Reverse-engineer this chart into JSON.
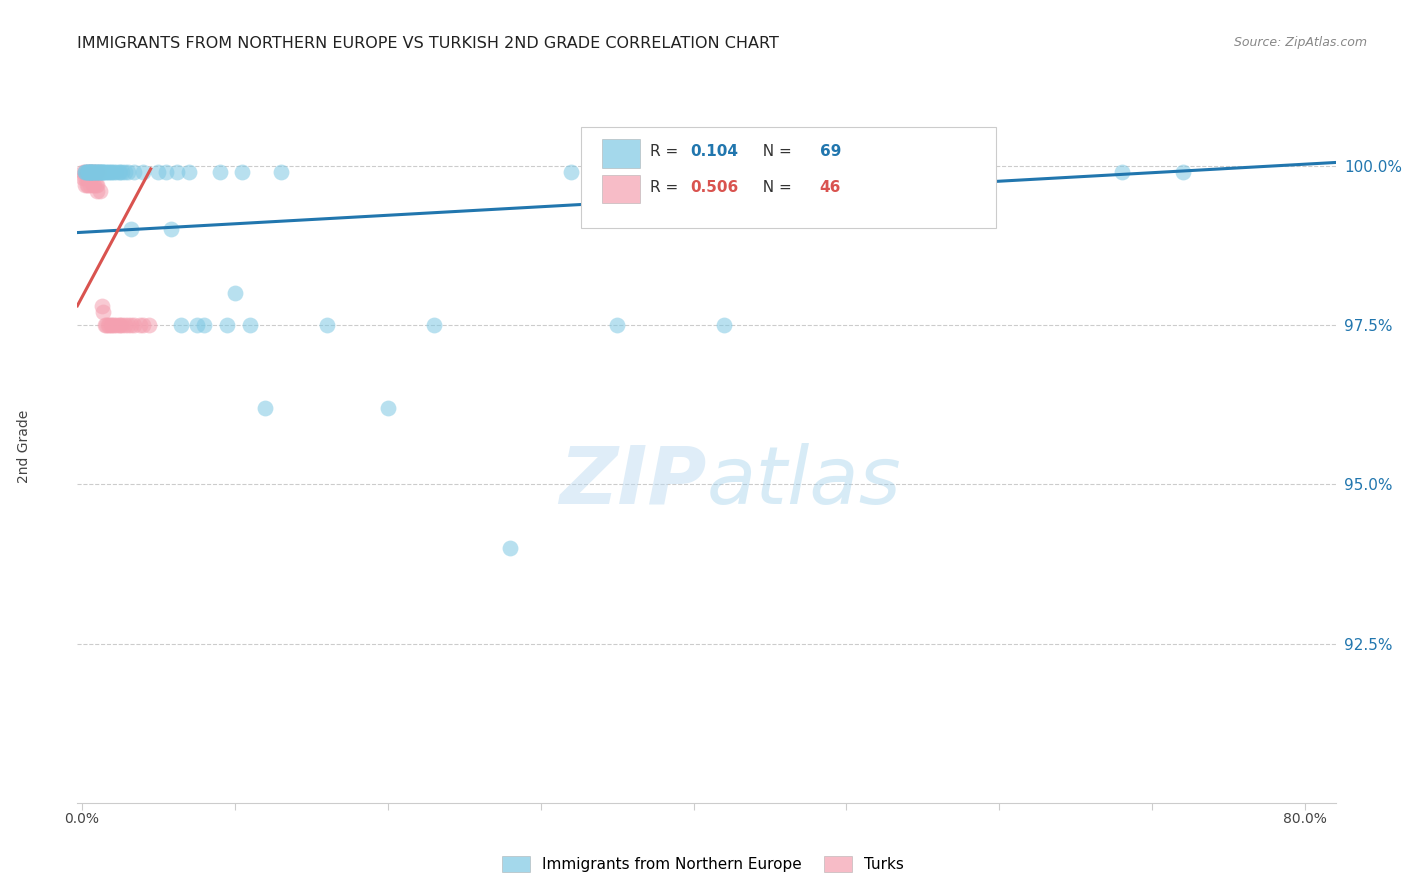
{
  "title": "IMMIGRANTS FROM NORTHERN EUROPE VS TURKISH 2ND GRADE CORRELATION CHART",
  "source": "Source: ZipAtlas.com",
  "ylabel": "2nd Grade",
  "ytick_labels": [
    "100.0%",
    "97.5%",
    "95.0%",
    "92.5%"
  ],
  "ytick_values": [
    1.0,
    0.975,
    0.95,
    0.925
  ],
  "ymin": 0.9,
  "ymax": 1.012,
  "xmin": -0.003,
  "xmax": 0.82,
  "legend_label1": "Immigrants from Northern Europe",
  "legend_label2": "Turks",
  "blue_color": "#7ec8e3",
  "pink_color": "#f4a0b0",
  "blue_line_color": "#2176ae",
  "pink_line_color": "#d9534f",
  "watermark_zip": "ZIP",
  "watermark_atlas": "atlas",
  "blue_scatter_x": [
    0.002,
    0.002,
    0.003,
    0.003,
    0.004,
    0.004,
    0.005,
    0.005,
    0.005,
    0.006,
    0.006,
    0.006,
    0.007,
    0.007,
    0.008,
    0.008,
    0.009,
    0.009,
    0.01,
    0.01,
    0.011,
    0.011,
    0.012,
    0.012,
    0.013,
    0.013,
    0.014,
    0.014,
    0.015,
    0.016,
    0.017,
    0.018,
    0.019,
    0.02,
    0.021,
    0.022,
    0.024,
    0.025,
    0.026,
    0.028,
    0.03,
    0.032,
    0.034,
    0.04,
    0.05,
    0.055,
    0.058,
    0.062,
    0.065,
    0.07,
    0.075,
    0.08,
    0.09,
    0.095,
    0.1,
    0.105,
    0.11,
    0.12,
    0.13,
    0.16,
    0.2,
    0.23,
    0.28,
    0.32,
    0.35,
    0.38,
    0.42,
    0.68,
    0.72
  ],
  "blue_scatter_y": [
    0.999,
    0.999,
    0.999,
    0.999,
    0.999,
    0.999,
    0.999,
    0.999,
    0.999,
    0.999,
    0.999,
    0.999,
    0.999,
    0.999,
    0.999,
    0.999,
    0.999,
    0.999,
    0.999,
    0.999,
    0.999,
    0.999,
    0.999,
    0.999,
    0.999,
    0.999,
    0.999,
    0.999,
    0.999,
    0.999,
    0.999,
    0.999,
    0.999,
    0.999,
    0.999,
    0.999,
    0.999,
    0.999,
    0.999,
    0.999,
    0.999,
    0.99,
    0.999,
    0.999,
    0.999,
    0.999,
    0.99,
    0.999,
    0.975,
    0.999,
    0.975,
    0.975,
    0.999,
    0.975,
    0.98,
    0.999,
    0.975,
    0.962,
    0.999,
    0.975,
    0.962,
    0.975,
    0.94,
    0.999,
    0.975,
    0.999,
    0.975,
    0.999,
    0.999
  ],
  "pink_scatter_x": [
    0.001,
    0.001,
    0.002,
    0.002,
    0.002,
    0.003,
    0.003,
    0.003,
    0.004,
    0.004,
    0.004,
    0.005,
    0.005,
    0.005,
    0.006,
    0.006,
    0.007,
    0.007,
    0.008,
    0.008,
    0.009,
    0.009,
    0.01,
    0.01,
    0.011,
    0.012,
    0.013,
    0.014,
    0.015,
    0.016,
    0.017,
    0.018,
    0.019,
    0.02,
    0.021,
    0.022,
    0.024,
    0.025,
    0.026,
    0.028,
    0.03,
    0.032,
    0.034,
    0.038,
    0.04,
    0.044
  ],
  "pink_scatter_y": [
    0.999,
    0.998,
    0.999,
    0.998,
    0.997,
    0.999,
    0.998,
    0.997,
    0.999,
    0.998,
    0.997,
    0.999,
    0.998,
    0.997,
    0.999,
    0.998,
    0.999,
    0.997,
    0.999,
    0.997,
    0.999,
    0.997,
    0.997,
    0.996,
    0.999,
    0.996,
    0.978,
    0.977,
    0.975,
    0.975,
    0.975,
    0.975,
    0.975,
    0.975,
    0.975,
    0.975,
    0.975,
    0.975,
    0.975,
    0.975,
    0.975,
    0.975,
    0.975,
    0.975,
    0.975,
    0.975
  ],
  "blue_line_x0": -0.003,
  "blue_line_x1": 0.82,
  "blue_line_y0": 0.9895,
  "blue_line_y1": 1.0005,
  "pink_line_x0": -0.003,
  "pink_line_x1": 0.045,
  "pink_line_y0": 0.978,
  "pink_line_y1": 0.9995
}
